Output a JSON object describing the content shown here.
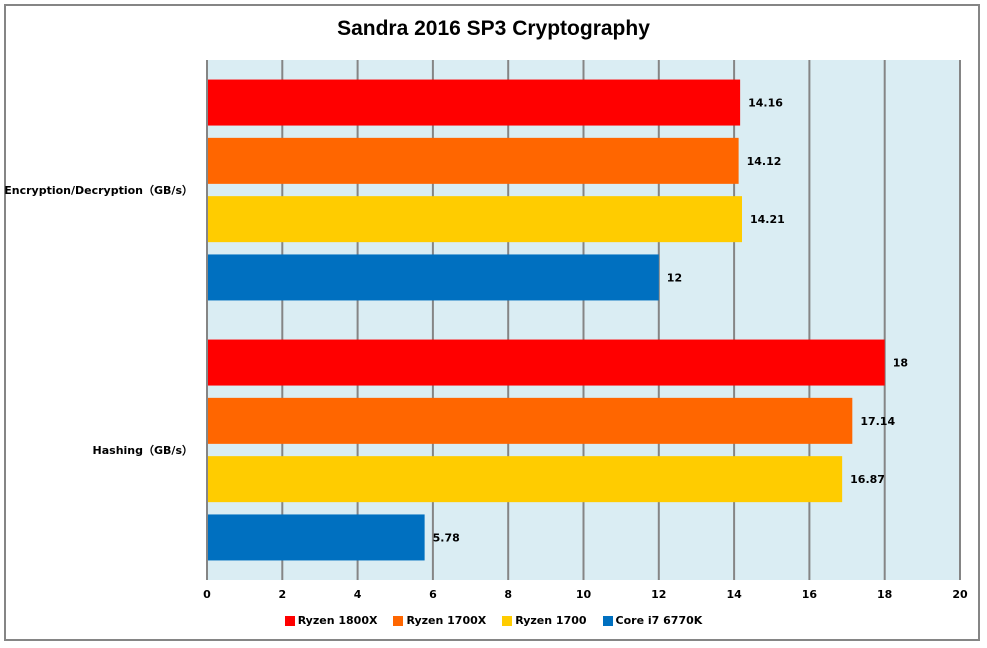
{
  "chart_data": {
    "type": "bar",
    "orientation": "horizontal",
    "title": "Sandra 2016 SP3 Cryptography",
    "xlabel": "",
    "ylabel": "",
    "xlim": [
      0,
      20
    ],
    "x_ticks": [
      0,
      2,
      4,
      6,
      8,
      10,
      12,
      14,
      16,
      18,
      20
    ],
    "grid": "vertical",
    "legend_position": "bottom",
    "categories": [
      "Encryption/Decryption（GB/s）",
      "Hashing（GB/s）"
    ],
    "series": [
      {
        "name": "Ryzen 1800X",
        "color": "#FF0000",
        "values": [
          14.16,
          18
        ]
      },
      {
        "name": "Ryzen 1700X",
        "color": "#FF6600",
        "values": [
          14.12,
          17.14
        ]
      },
      {
        "name": "Ryzen 1700",
        "color": "#FFCC00",
        "values": [
          14.21,
          16.87
        ]
      },
      {
        "name": "Core i7 6770K",
        "color": "#0070C0",
        "values": [
          12,
          5.78
        ]
      }
    ],
    "data_labels": [
      [
        "14.16",
        "18"
      ],
      [
        "14.12",
        "17.14"
      ],
      [
        "14.21",
        "16.87"
      ],
      [
        "12",
        "5.78"
      ]
    ]
  },
  "colors": {
    "plot_background": "#DAEDF3",
    "gridline": "#858585",
    "border": "#858585"
  }
}
